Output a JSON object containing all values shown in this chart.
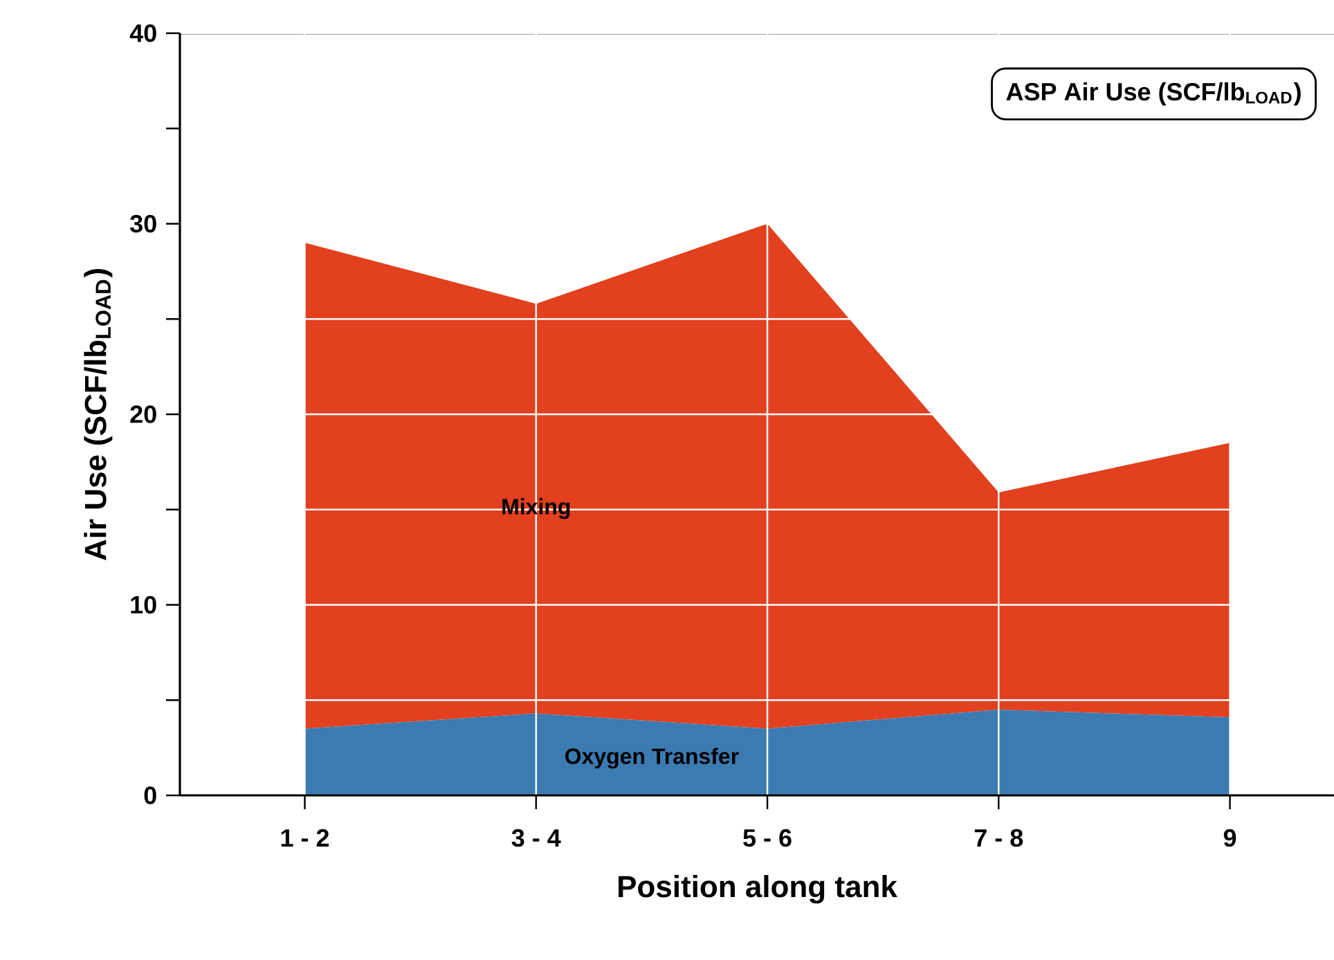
{
  "chart_data": {
    "type": "area",
    "stacked": true,
    "title": "ASP Air Use (SCF/lb$_{LOAD}$)",
    "xlabel": "Position along tank",
    "ylabel": "Air Use (SCF/lb$_{LOAD}$)",
    "categories": [
      "1 - 2",
      "3 - 4",
      "5 - 6",
      "7 - 8",
      "9"
    ],
    "series": [
      {
        "name": "Oxygen Transfer",
        "color": "#3b7bb2",
        "values": [
          3.5,
          4.3,
          3.5,
          4.5,
          4.1
        ]
      },
      {
        "name": "Mixing",
        "color": "#e2401e",
        "values": [
          25.5,
          21.5,
          26.5,
          11.4,
          14.4
        ]
      }
    ],
    "ylim": [
      0,
      40
    ],
    "yticks": [
      0,
      {
        "value": 5,
        "label": null
      },
      10,
      {
        "value": 15,
        "label": null
      },
      20,
      {
        "value": 25,
        "label": null
      },
      30,
      {
        "value": 35,
        "label": null
      },
      40
    ],
    "grid": true
  }
}
